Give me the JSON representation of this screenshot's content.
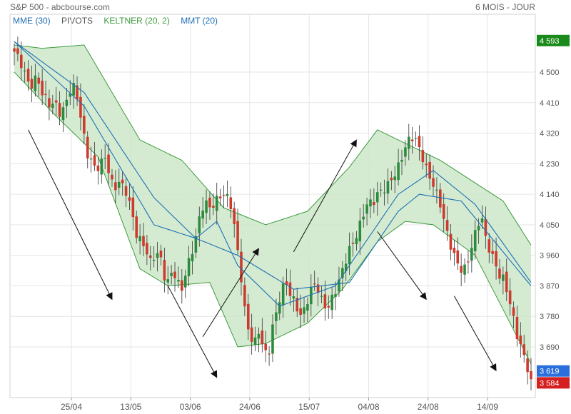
{
  "header": {
    "title": "S&P 500 - abcbourse.com",
    "period": "6 MOIS - JOUR"
  },
  "legend": {
    "items": [
      {
        "label": "MME (30)",
        "color": "#1f6fb5"
      },
      {
        "label": "PIVOTS",
        "color": "#555555"
      },
      {
        "label": "KELTNER (20, 2)",
        "color": "#3d9a3d"
      },
      {
        "label": "MMT (20)",
        "color": "#1f6fb5"
      }
    ]
  },
  "chart_data": {
    "type": "candlestick",
    "y_ticks": [
      "4 500",
      "4 410",
      "4 320",
      "4 230",
      "4 140",
      "4 050",
      "3 960",
      "3 870",
      "3 780",
      "3 690"
    ],
    "x_ticks": [
      "25/04",
      "13/05",
      "03/06",
      "24/06",
      "15/07",
      "04/08",
      "24/08",
      "14/09"
    ],
    "ylim": [
      3550,
      4640
    ],
    "price_labels": [
      {
        "text": "4 593",
        "value": 4593,
        "color": "#1a8a1a"
      },
      {
        "text": "3 619",
        "value": 3619,
        "color": "#2a6fdb"
      },
      {
        "text": "3 584",
        "value": 3584,
        "color": "#d42020"
      }
    ],
    "colors": {
      "up": "#2e8b3e",
      "down": "#cc3b2e",
      "keltner_fill": "#cde8c9",
      "keltner_line": "#3d9a3d",
      "ma": "#1f6fb5"
    },
    "closes": [
      4560,
      4540,
      4510,
      4470,
      4460,
      4490,
      4440,
      4420,
      4400,
      4410,
      4380,
      4390,
      4440,
      4460,
      4420,
      4340,
      4260,
      4240,
      4210,
      4230,
      4250,
      4200,
      4150,
      4180,
      4160,
      4140,
      4080,
      4020,
      4000,
      3980,
      3940,
      3960,
      3970,
      3900,
      3880,
      3920,
      3880,
      3860,
      3920,
      3960,
      4010,
      4080,
      4120,
      4100,
      4110,
      4130,
      4140,
      4130,
      4100,
      4000,
      3900,
      3780,
      3720,
      3700,
      3740,
      3680,
      3660,
      3750,
      3800,
      3860,
      3880,
      3840,
      3820,
      3780,
      3800,
      3840,
      3880,
      3860,
      3820,
      3800,
      3830,
      3860,
      3900,
      3940,
      3980,
      4000,
      4040,
      4080,
      4120,
      4110,
      4140,
      4150,
      4160,
      4180,
      4200,
      4230,
      4270,
      4300,
      4310,
      4290,
      4250,
      4210,
      4180,
      4150,
      4110,
      4050,
      4000,
      3960,
      3930,
      3910,
      3940,
      3990,
      4040,
      4080,
      4010,
      3970,
      3940,
      3900,
      3890,
      3840,
      3780,
      3720,
      3680,
      3640,
      3584
    ],
    "keltner_upper": [
      [
        0,
        4580
      ],
      [
        8,
        4570
      ],
      [
        20,
        4580
      ],
      [
        36,
        4300
      ],
      [
        48,
        4240
      ],
      [
        60,
        4100
      ],
      [
        72,
        4050
      ],
      [
        84,
        4090
      ],
      [
        96,
        4220
      ],
      [
        104,
        4330
      ],
      [
        112,
        4290
      ],
      [
        122,
        4240
      ],
      [
        140,
        4120
      ],
      [
        148,
        3990
      ]
    ],
    "keltner_lower": [
      [
        0,
        4500
      ],
      [
        12,
        4370
      ],
      [
        24,
        4250
      ],
      [
        36,
        3920
      ],
      [
        44,
        3870
      ],
      [
        56,
        3880
      ],
      [
        64,
        3690
      ],
      [
        72,
        3700
      ],
      [
        84,
        3760
      ],
      [
        94,
        3860
      ],
      [
        104,
        4000
      ],
      [
        112,
        4060
      ],
      [
        120,
        4050
      ],
      [
        132,
        3960
      ],
      [
        148,
        3640
      ]
    ],
    "ema30": [
      [
        0,
        4590
      ],
      [
        20,
        4440
      ],
      [
        40,
        4130
      ],
      [
        52,
        4010
      ],
      [
        64,
        3960
      ],
      [
        80,
        3860
      ],
      [
        96,
        3880
      ],
      [
        110,
        4090
      ],
      [
        116,
        4140
      ],
      [
        128,
        4120
      ],
      [
        148,
        3870
      ]
    ],
    "sma20": [
      [
        0,
        4590
      ],
      [
        20,
        4400
      ],
      [
        40,
        4050
      ],
      [
        52,
        4010
      ],
      [
        58,
        4060
      ],
      [
        64,
        3930
      ],
      [
        76,
        3810
      ],
      [
        92,
        3870
      ],
      [
        110,
        4140
      ],
      [
        120,
        4210
      ],
      [
        132,
        4110
      ],
      [
        148,
        3880
      ]
    ],
    "arrows": [
      {
        "from": [
          4,
          4330
        ],
        "to": [
          28,
          3830
        ]
      },
      {
        "from": [
          44,
          3870
        ],
        "to": [
          58,
          3600
        ]
      },
      {
        "from": [
          54,
          3720
        ],
        "to": [
          70,
          3980
        ]
      },
      {
        "from": [
          80,
          3970
        ],
        "to": [
          98,
          4300
        ]
      },
      {
        "from": [
          104,
          4030
        ],
        "to": [
          118,
          3830
        ]
      },
      {
        "from": [
          126,
          3840
        ],
        "to": [
          138,
          3620
        ]
      }
    ]
  }
}
